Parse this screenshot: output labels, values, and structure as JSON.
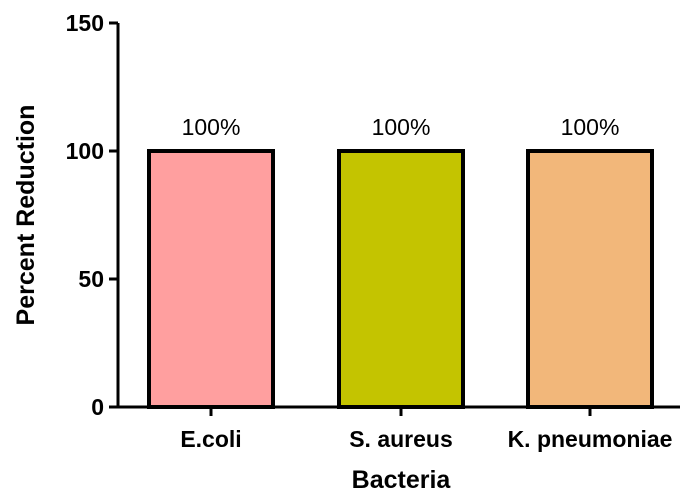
{
  "chart_data": {
    "type": "bar",
    "categories": [
      "E.coli",
      "S. aureus",
      "K. pneumoniae"
    ],
    "values": [
      100,
      100,
      100
    ],
    "data_labels": [
      "100%",
      "100%",
      "100%"
    ],
    "colors": [
      "#ff9f9f",
      "#c4c400",
      "#f2b77a"
    ],
    "xlabel": "Bacteria",
    "ylabel": "Percent Reduction",
    "ylim": [
      0,
      150
    ],
    "yticks": [
      0,
      50,
      100,
      150
    ],
    "grid": false,
    "legend": "none"
  }
}
